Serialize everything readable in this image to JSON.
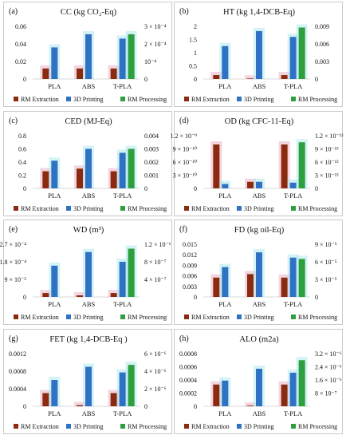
{
  "legend": [
    "RM Extraction",
    "3D Printing",
    "RM Processing"
  ],
  "colors": {
    "extraction": "#8b2a0e",
    "printing": "#2f72c4",
    "processing": "#2e9f3e",
    "glow_a": "#e9b2c8",
    "glow_b": "#aee9ee"
  },
  "categories": [
    "PLA",
    "ABS",
    "T-PLA"
  ],
  "chart_data": [
    {
      "type": "bar",
      "label": "(a)",
      "title": "CC (kg CO₂-Eq)",
      "categories": [
        "PLA",
        "ABS",
        "T-PLA"
      ],
      "left_ticks": [
        "0",
        "0.02",
        "0.04",
        "0.06"
      ],
      "right_ticks": [
        "0",
        "10⁻⁴",
        "2 × 10⁻⁴",
        "3 × 10⁻⁴"
      ],
      "ylim": [
        0,
        0.06
      ],
      "y2lim": [
        0,
        0.0003
      ],
      "series": [
        {
          "name": "RM Extraction",
          "axis": "left",
          "values": [
            0.012,
            0.012,
            0.012
          ]
        },
        {
          "name": "3D Printing",
          "axis": "left",
          "values": [
            0.036,
            0.051,
            0.046
          ]
        },
        {
          "name": "RM Processing",
          "axis": "right",
          "values": [
            0,
            0,
            0.000255
          ]
        }
      ]
    },
    {
      "type": "bar",
      "label": "(b)",
      "title": "HT (kg 1,4-DCB-Eq)",
      "categories": [
        "PLA",
        "ABS",
        "T-PLA"
      ],
      "left_ticks": [
        "0",
        "0.5",
        "1",
        "1.5",
        "2"
      ],
      "right_ticks": [
        "0",
        "0.003",
        "0.006",
        "0.009"
      ],
      "ylim": [
        0,
        2
      ],
      "y2lim": [
        0,
        0.009
      ],
      "series": [
        {
          "name": "RM Extraction",
          "axis": "left",
          "values": [
            0.15,
            0.02,
            0.15
          ]
        },
        {
          "name": "3D Printing",
          "axis": "left",
          "values": [
            1.25,
            1.82,
            1.6
          ]
        },
        {
          "name": "RM Processing",
          "axis": "right",
          "values": [
            0,
            0,
            0.0088
          ]
        }
      ]
    },
    {
      "type": "bar",
      "label": "(c)",
      "title": "CED (MJ-Eq)",
      "categories": [
        "PLA",
        "ABS",
        "T-PLA"
      ],
      "left_ticks": [
        "0",
        "0.2",
        "0.4",
        "0.6",
        "0.8"
      ],
      "right_ticks": [
        "0",
        "0.001",
        "0.002",
        "0.003",
        "0.004"
      ],
      "ylim": [
        0,
        0.8
      ],
      "y2lim": [
        0,
        0.004
      ],
      "series": [
        {
          "name": "RM Extraction",
          "axis": "left",
          "values": [
            0.26,
            0.3,
            0.26
          ]
        },
        {
          "name": "3D Printing",
          "axis": "left",
          "values": [
            0.42,
            0.6,
            0.54
          ]
        },
        {
          "name": "RM Processing",
          "axis": "right",
          "values": [
            0,
            0,
            0.003
          ]
        }
      ]
    },
    {
      "type": "bar",
      "label": "(d)",
      "title": "OD (kg CFC-11-Eq)",
      "categories": [
        "PLA",
        "ABS",
        "T-PLA"
      ],
      "left_ticks": [
        "0",
        "3 × 10⁻¹⁰",
        "6 × 10⁻¹⁰",
        "9 × 10⁻¹⁰",
        "1.2 × 10⁻⁹"
      ],
      "right_ticks": [
        "0",
        "3 × 10⁻¹³",
        "6 × 10⁻¹³",
        "9 × 10⁻¹³",
        "1.2 × 10⁻¹²"
      ],
      "ylim": [
        0,
        1.2e-09
      ],
      "y2lim": [
        0,
        1.2e-12
      ],
      "series": [
        {
          "name": "RM Extraction",
          "axis": "left",
          "values": [
            1e-09,
            1.5e-10,
            1e-09
          ]
        },
        {
          "name": "3D Printing",
          "axis": "left",
          "values": [
            1e-10,
            1.5e-10,
            1.3e-10
          ]
        },
        {
          "name": "RM Processing",
          "axis": "right",
          "values": [
            0,
            0,
            1.05e-12
          ]
        }
      ]
    },
    {
      "type": "bar",
      "label": "(e)",
      "title": "WD (m³)",
      "categories": [
        "PLA",
        "ABS",
        "T-PLA"
      ],
      "left_ticks": [
        "0",
        "9 × 10⁻⁵",
        "1.8 × 10⁻⁴",
        "2.7 × 10⁻⁴"
      ],
      "right_ticks": [
        "4 × 10⁻⁷",
        "8 × 10⁻⁷",
        "1.2 × 10⁻⁶"
      ],
      "ylim": [
        0,
        0.00027
      ],
      "y2lim": [
        0,
        1.2e-06
      ],
      "series": [
        {
          "name": "RM Extraction",
          "axis": "left",
          "values": [
            2e-05,
            8e-06,
            2e-05
          ]
        },
        {
          "name": "3D Printing",
          "axis": "left",
          "values": [
            0.00016,
            0.00023,
            0.00018
          ]
        },
        {
          "name": "RM Processing",
          "axis": "right",
          "values": [
            0,
            0,
            1.1e-06
          ]
        }
      ]
    },
    {
      "type": "bar",
      "label": "(f)",
      "title": "FD (kg oil-Eq)",
      "categories": [
        "PLA",
        "ABS",
        "T-PLA"
      ],
      "left_ticks": [
        "0",
        "0.003",
        "0.006",
        "0.009",
        "0.012",
        "0.015"
      ],
      "right_ticks": [
        "0",
        "3 × 10⁻⁵",
        "6 × 10⁻⁵",
        "9 × 10⁻⁵"
      ],
      "ylim": [
        0,
        0.015
      ],
      "y2lim": [
        0,
        9e-05
      ],
      "series": [
        {
          "name": "RM Extraction",
          "axis": "left",
          "values": [
            0.0055,
            0.0065,
            0.0055
          ]
        },
        {
          "name": "3D Printing",
          "axis": "left",
          "values": [
            0.0085,
            0.0127,
            0.0112
          ]
        },
        {
          "name": "RM Processing",
          "axis": "right",
          "values": [
            0,
            0,
            6.5e-05
          ]
        }
      ]
    },
    {
      "type": "bar",
      "label": "(g)",
      "title": "FET (kg 1,4-DCB-Eq )",
      "categories": [
        "PLA",
        "ABS",
        "T-PLA"
      ],
      "left_ticks": [
        "0",
        "0.0004",
        "0.0008",
        "0.0012"
      ],
      "right_ticks": [
        "0",
        "2 × 10⁻⁶",
        "4 × 10⁻⁶",
        "6 × 10⁻⁶"
      ],
      "ylim": [
        0,
        0.0014
      ],
      "y2lim": [
        0,
        7e-06
      ],
      "series": [
        {
          "name": "RM Extraction",
          "axis": "left",
          "values": [
            0.00035,
            3e-05,
            0.00035
          ]
        },
        {
          "name": "3D Printing",
          "axis": "left",
          "values": [
            0.0007,
            0.00105,
            0.0009
          ]
        },
        {
          "name": "RM Processing",
          "axis": "right",
          "values": [
            0,
            0,
            5.5e-06
          ]
        }
      ]
    },
    {
      "type": "bar",
      "label": "(h)",
      "title": "ALO (m2a)",
      "categories": [
        "PLA",
        "ABS",
        "T-PLA"
      ],
      "left_ticks": [
        "0",
        "0.0002",
        "0.0004",
        "0.0006",
        "0.0008"
      ],
      "right_ticks": [
        "8 × 10⁻⁷",
        "1.6 × 10⁻⁶",
        "2.4 × 10⁻⁶",
        "3.2 × 10⁻⁶"
      ],
      "ylim": [
        0,
        0.0008
      ],
      "y2lim": [
        0,
        3.2e-06
      ],
      "series": [
        {
          "name": "RM Extraction",
          "axis": "left",
          "values": [
            0.00033,
            1e-05,
            0.00033
          ]
        },
        {
          "name": "3D Printing",
          "axis": "left",
          "values": [
            0.00039,
            0.00057,
            0.00051
          ]
        },
        {
          "name": "RM Processing",
          "axis": "right",
          "values": [
            0,
            0,
            2.8e-06
          ]
        }
      ]
    }
  ]
}
